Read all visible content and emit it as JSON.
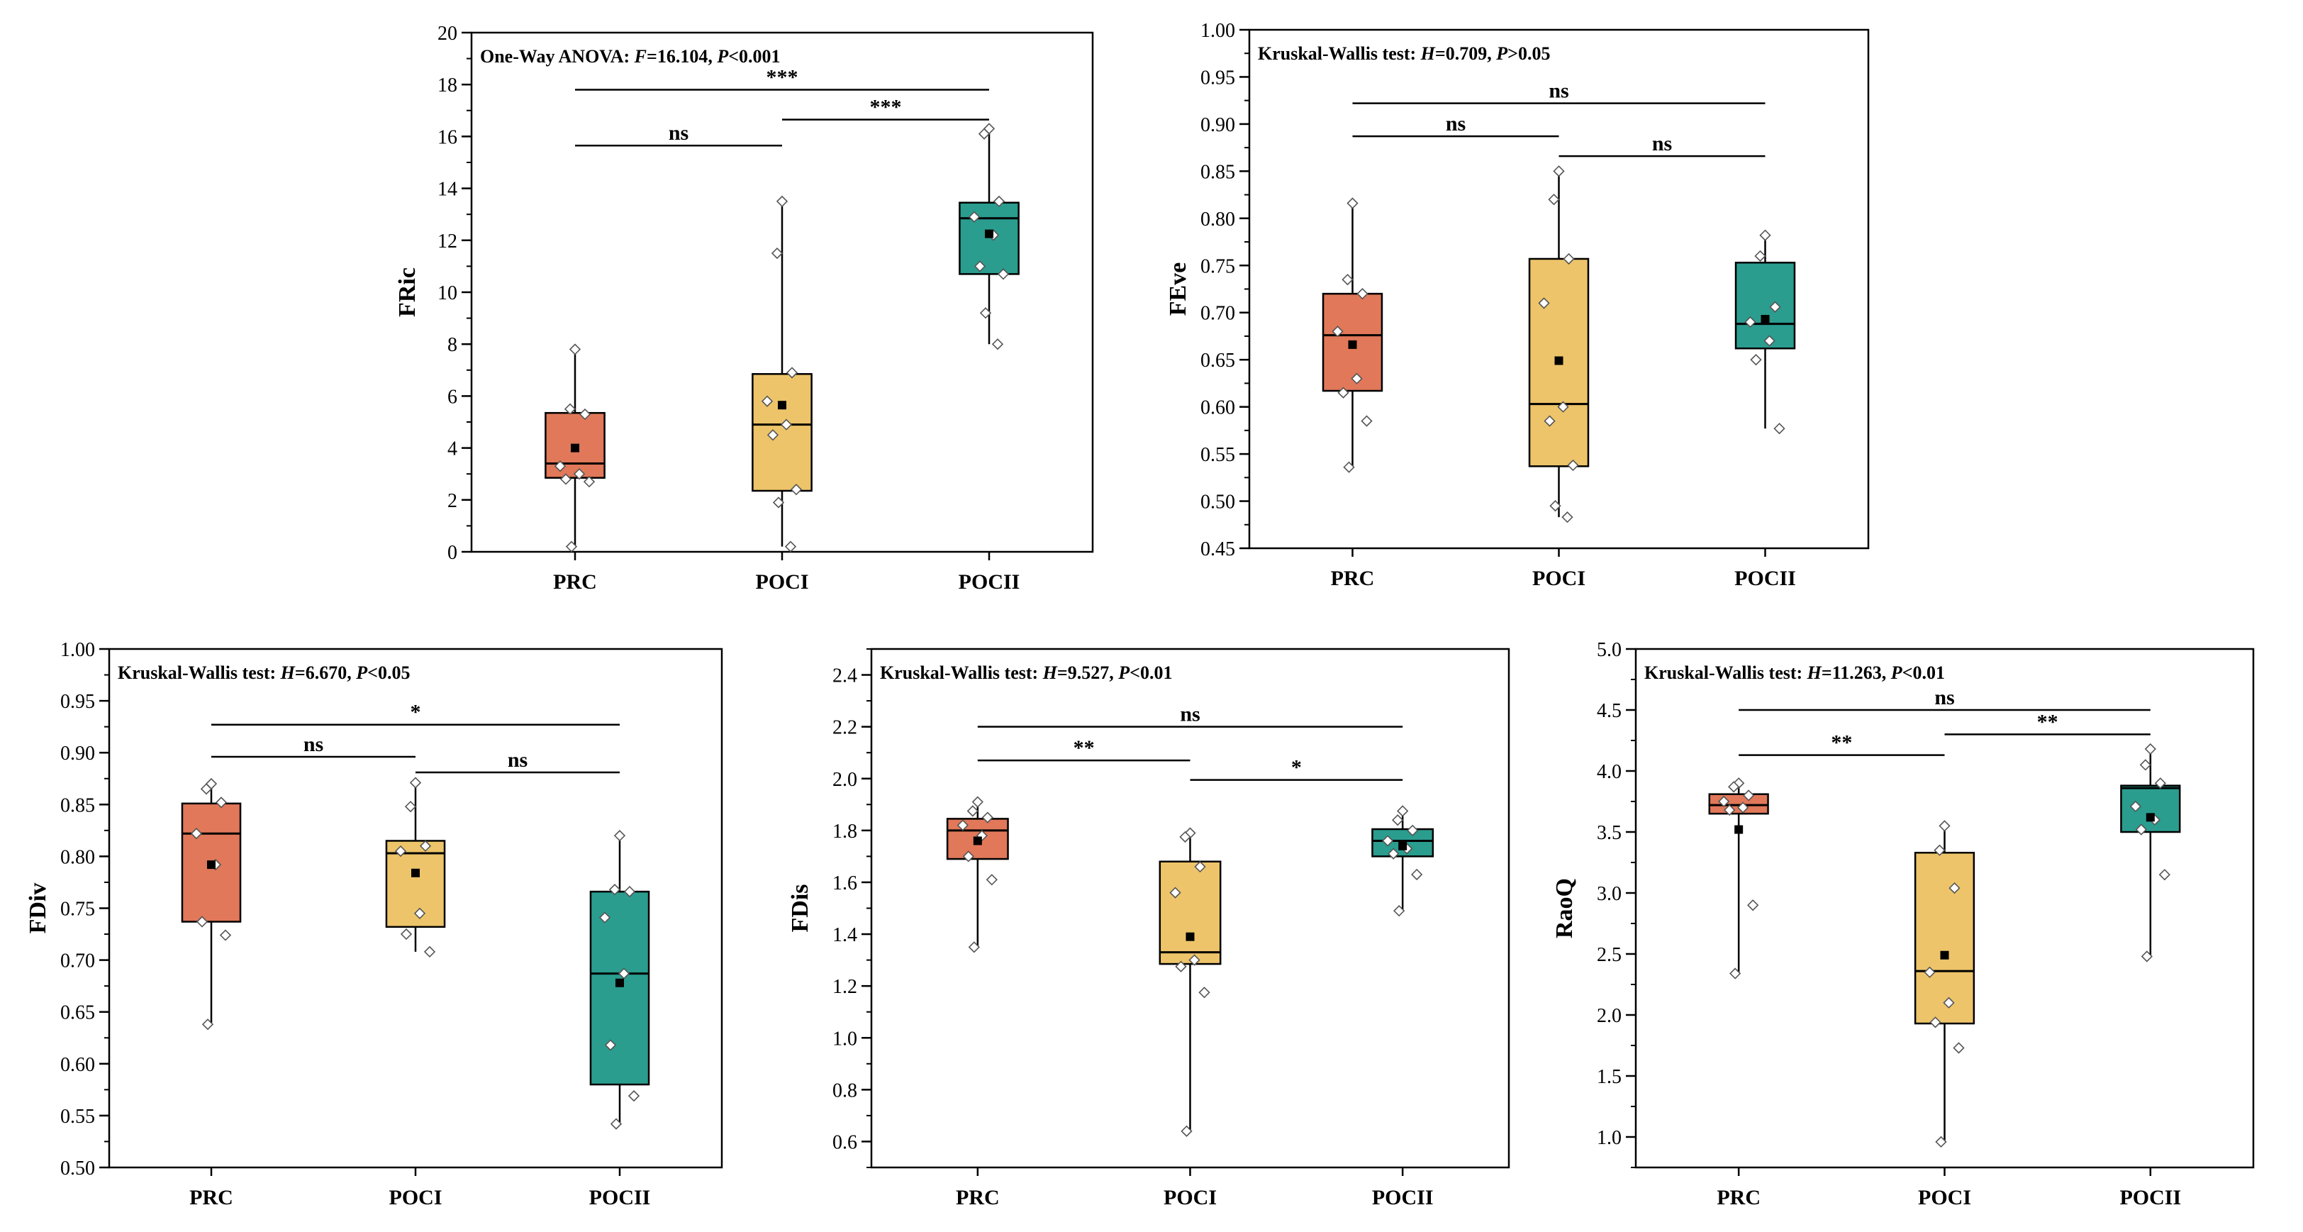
{
  "chart_data": [
    {
      "id": "fric",
      "type": "box",
      "ylabel": "FRic",
      "ylim": [
        0,
        20
      ],
      "ytick_step": 2,
      "ytick_labels": [
        "0",
        "2",
        "4",
        "6",
        "8",
        "10",
        "12",
        "14",
        "16",
        "18",
        "20"
      ],
      "categories": [
        "PRC",
        "POCI",
        "POCII"
      ],
      "annotation": {
        "test": "One-Way ANOVA: ",
        "stat_name": "F",
        "stat_value": "=16.104, ",
        "p_name": "P",
        "p_value": "<0.001"
      },
      "groups": [
        {
          "name": "PRC",
          "color": "#E07859",
          "q1": 2.85,
          "median": 3.4,
          "q3": 5.35,
          "whisker_low": 0.2,
          "whisker_high": 7.8,
          "mean": 4.0,
          "points": [
            7.8,
            5.5,
            5.3,
            3.3,
            3.0,
            2.8,
            2.7,
            0.2
          ]
        },
        {
          "name": "POCI",
          "color": "#EDC46A",
          "q1": 2.35,
          "median": 4.9,
          "q3": 6.85,
          "whisker_low": 0.2,
          "whisker_high": 13.5,
          "mean": 5.65,
          "points": [
            13.5,
            11.5,
            6.9,
            5.8,
            4.9,
            4.5,
            2.4,
            1.9,
            0.2
          ]
        },
        {
          "name": "POCII",
          "color": "#2A9D8F",
          "q1": 10.7,
          "median": 12.85,
          "q3": 13.45,
          "whisker_low": 8.0,
          "whisker_high": 16.3,
          "mean": 12.25,
          "points": [
            16.3,
            16.1,
            13.5,
            12.9,
            12.2,
            11.0,
            10.7,
            9.2,
            8.0
          ]
        }
      ],
      "comparisons": [
        {
          "from": "PRC",
          "to": "POCI",
          "y": 15.65,
          "label": "ns"
        },
        {
          "from": "POCI",
          "to": "POCII",
          "y": 16.65,
          "label": "***"
        },
        {
          "from": "PRC",
          "to": "POCII",
          "y": 17.8,
          "label": "***"
        }
      ]
    },
    {
      "id": "feve",
      "type": "box",
      "ylabel": "FEve",
      "ylim": [
        0.45,
        1.0
      ],
      "ytick_step": 0.05,
      "ytick_labels": [
        "0.45",
        "0.50",
        "0.55",
        "0.60",
        "0.65",
        "0.70",
        "0.75",
        "0.80",
        "0.85",
        "0.90",
        "0.95",
        "1.00"
      ],
      "categories": [
        "PRC",
        "POCI",
        "POCII"
      ],
      "annotation": {
        "test": "Kruskal-Wallis test: ",
        "stat_name": "H",
        "stat_value": "=0.709, ",
        "p_name": "P",
        "p_value": ">0.05"
      },
      "groups": [
        {
          "name": "PRC",
          "color": "#E07859",
          "q1": 0.617,
          "median": 0.676,
          "q3": 0.72,
          "whisker_low": 0.536,
          "whisker_high": 0.816,
          "mean": 0.666,
          "points": [
            0.816,
            0.735,
            0.72,
            0.68,
            0.63,
            0.615,
            0.585,
            0.536
          ]
        },
        {
          "name": "POCI",
          "color": "#EDC46A",
          "q1": 0.537,
          "median": 0.603,
          "q3": 0.757,
          "whisker_low": 0.483,
          "whisker_high": 0.85,
          "mean": 0.649,
          "points": [
            0.85,
            0.82,
            0.757,
            0.71,
            0.6,
            0.585,
            0.538,
            0.495,
            0.483
          ]
        },
        {
          "name": "POCII",
          "color": "#2A9D8F",
          "q1": 0.662,
          "median": 0.688,
          "q3": 0.753,
          "whisker_low": 0.577,
          "whisker_high": 0.782,
          "mean": 0.693,
          "points": [
            0.782,
            0.76,
            0.706,
            0.69,
            0.67,
            0.65,
            0.577
          ]
        }
      ],
      "comparisons": [
        {
          "from": "PRC",
          "to": "POCI",
          "y": 0.887,
          "label": "ns"
        },
        {
          "from": "POCI",
          "to": "POCII",
          "y": 0.866,
          "label": "ns"
        },
        {
          "from": "PRC",
          "to": "POCII",
          "y": 0.922,
          "label": "ns"
        }
      ]
    },
    {
      "id": "fdiv",
      "type": "box",
      "ylabel": "FDiv",
      "ylim": [
        0.5,
        1.0
      ],
      "ytick_step": 0.05,
      "ytick_labels": [
        "0.50",
        "0.55",
        "0.60",
        "0.65",
        "0.70",
        "0.75",
        "0.80",
        "0.85",
        "0.90",
        "0.95",
        "1.00"
      ],
      "categories": [
        "PRC",
        "POCI",
        "POCII"
      ],
      "annotation": {
        "test": "Kruskal-Wallis test: ",
        "stat_name": "H",
        "stat_value": "=6.670, ",
        "p_name": "P",
        "p_value": "<0.05"
      },
      "groups": [
        {
          "name": "PRC",
          "color": "#E07859",
          "q1": 0.737,
          "median": 0.822,
          "q3": 0.851,
          "whisker_low": 0.638,
          "whisker_high": 0.87,
          "mean": 0.792,
          "points": [
            0.87,
            0.865,
            0.852,
            0.822,
            0.792,
            0.737,
            0.724,
            0.638
          ]
        },
        {
          "name": "POCI",
          "color": "#EDC46A",
          "q1": 0.732,
          "median": 0.803,
          "q3": 0.815,
          "whisker_low": 0.708,
          "whisker_high": 0.871,
          "mean": 0.784,
          "points": [
            0.871,
            0.848,
            0.81,
            0.805,
            0.745,
            0.725,
            0.708
          ]
        },
        {
          "name": "POCII",
          "color": "#2A9D8F",
          "q1": 0.58,
          "median": 0.687,
          "q3": 0.766,
          "whisker_low": 0.542,
          "whisker_high": 0.82,
          "mean": 0.678,
          "points": [
            0.82,
            0.768,
            0.766,
            0.741,
            0.687,
            0.618,
            0.569,
            0.542
          ]
        }
      ],
      "comparisons": [
        {
          "from": "PRC",
          "to": "POCI",
          "y": 0.896,
          "label": "ns"
        },
        {
          "from": "POCI",
          "to": "POCII",
          "y": 0.881,
          "label": "ns"
        },
        {
          "from": "PRC",
          "to": "POCII",
          "y": 0.927,
          "label": "*"
        }
      ]
    },
    {
      "id": "fdis",
      "type": "box",
      "ylabel": "FDis",
      "ylim": [
        0.5,
        2.5
      ],
      "ytick_step": 0.2,
      "ytick_labels": [
        "0.6",
        "0.8",
        "1.0",
        "1.2",
        "1.4",
        "1.6",
        "1.8",
        "2.0",
        "2.2",
        "2.4"
      ],
      "categories": [
        "PRC",
        "POCI",
        "POCII"
      ],
      "annotation": {
        "test": "Kruskal-Wallis test: ",
        "stat_name": "H",
        "stat_value": "=9.527, ",
        "p_name": "P",
        "p_value": "<0.01"
      },
      "groups": [
        {
          "name": "PRC",
          "color": "#E07859",
          "q1": 1.69,
          "median": 1.8,
          "q3": 1.845,
          "whisker_low": 1.35,
          "whisker_high": 1.91,
          "mean": 1.76,
          "points": [
            1.91,
            1.875,
            1.85,
            1.82,
            1.78,
            1.7,
            1.61,
            1.35
          ]
        },
        {
          "name": "POCI",
          "color": "#EDC46A",
          "q1": 1.285,
          "median": 1.33,
          "q3": 1.68,
          "whisker_low": 0.64,
          "whisker_high": 1.79,
          "mean": 1.39,
          "points": [
            1.79,
            1.775,
            1.66,
            1.56,
            1.3,
            1.275,
            1.175,
            0.64
          ]
        },
        {
          "name": "POCII",
          "color": "#2A9D8F",
          "q1": 1.7,
          "median": 1.76,
          "q3": 1.805,
          "whisker_low": 1.49,
          "whisker_high": 1.875,
          "mean": 1.74,
          "points": [
            1.875,
            1.84,
            1.8,
            1.76,
            1.73,
            1.71,
            1.63,
            1.49
          ]
        }
      ],
      "comparisons": [
        {
          "from": "PRC",
          "to": "POCI",
          "y": 2.07,
          "label": "**"
        },
        {
          "from": "POCI",
          "to": "POCII",
          "y": 1.995,
          "label": "*"
        },
        {
          "from": "PRC",
          "to": "POCII",
          "y": 2.2,
          "label": "ns"
        }
      ]
    },
    {
      "id": "raoq",
      "type": "box",
      "ylabel": "RaoQ",
      "ylim": [
        0.75,
        5.0
      ],
      "ytick_step": 0.5,
      "ytick_labels": [
        "1.0",
        "1.5",
        "2.0",
        "2.5",
        "3.0",
        "3.5",
        "4.0",
        "4.5",
        "5.0"
      ],
      "categories": [
        "PRC",
        "POCI",
        "POCII"
      ],
      "annotation": {
        "test": "Kruskal-Wallis test: ",
        "stat_name": "H",
        "stat_value": "=11.263, ",
        "p_name": "P",
        "p_value": "<0.01"
      },
      "groups": [
        {
          "name": "PRC",
          "color": "#E07859",
          "q1": 3.65,
          "median": 3.72,
          "q3": 3.81,
          "whisker_low": 2.34,
          "whisker_high": 3.9,
          "mean": 3.52,
          "points": [
            3.9,
            3.87,
            3.8,
            3.75,
            3.7,
            3.68,
            2.9,
            2.34
          ]
        },
        {
          "name": "POCI",
          "color": "#EDC46A",
          "q1": 1.93,
          "median": 2.36,
          "q3": 3.33,
          "whisker_low": 0.96,
          "whisker_high": 3.55,
          "mean": 2.49,
          "points": [
            3.55,
            3.35,
            3.04,
            2.35,
            2.1,
            1.94,
            1.73,
            0.96
          ]
        },
        {
          "name": "POCII",
          "color": "#2A9D8F",
          "q1": 3.5,
          "median": 3.86,
          "q3": 3.88,
          "whisker_low": 2.48,
          "whisker_high": 4.18,
          "mean": 3.62,
          "points": [
            4.18,
            4.05,
            3.9,
            3.71,
            3.6,
            3.52,
            3.15,
            2.48
          ]
        }
      ],
      "comparisons": [
        {
          "from": "PRC",
          "to": "POCI",
          "y": 4.13,
          "label": "**"
        },
        {
          "from": "POCI",
          "to": "POCII",
          "y": 4.3,
          "label": "**"
        },
        {
          "from": "PRC",
          "to": "POCII",
          "y": 4.5,
          "label": "ns"
        }
      ]
    }
  ]
}
